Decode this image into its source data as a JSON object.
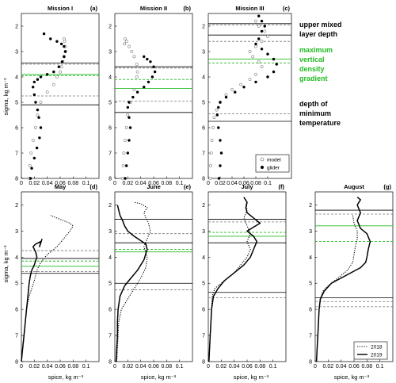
{
  "figure": {
    "ylabel": "sigma, kg m⁻³",
    "xlabel": "spice, kg m⁻³"
  },
  "annotations": {
    "upper_line1": "upper mixed",
    "upper_line2": "layer depth",
    "green_line1": "maximum",
    "green_line2": "vertical",
    "green_line3": "density",
    "green_line4": "gradient",
    "green_color": "#22bb22",
    "min_line1": "depth of",
    "min_line2": "minimum",
    "min_line3": "temperature"
  },
  "legend_top": {
    "model": "model",
    "glider": "glider"
  },
  "legend_bottom": {
    "y2018": "2018",
    "y2019": "2019"
  },
  "chart_data": [
    {
      "id": "a",
      "type": "scatter",
      "title": "Mission I",
      "panel_label": "(a)",
      "xlim": [
        0,
        0.12
      ],
      "ylim": [
        8,
        1.5
      ],
      "xticks": [
        0,
        0.02,
        0.04,
        0.06,
        0.08,
        0.1
      ],
      "yticks": [
        2,
        3,
        4,
        5,
        6,
        7,
        8
      ],
      "series": [
        {
          "marker": "open",
          "x": [
            0.012,
            0.013,
            0.015,
            0.018,
            0.022,
            0.025,
            0.03,
            0.04,
            0.05,
            0.055,
            0.06,
            0.062,
            0.064,
            0.066,
            0.068,
            0.068,
            0.067,
            0.066
          ],
          "y": [
            8.0,
            7.5,
            7.0,
            6.5,
            6.0,
            5.5,
            5.0,
            4.6,
            4.3,
            4.0,
            3.8,
            3.6,
            3.4,
            3.2,
            3.0,
            2.8,
            2.6,
            2.5
          ]
        },
        {
          "marker": "filled",
          "x": [
            0.014,
            0.016,
            0.02,
            0.024,
            0.028,
            0.03,
            0.027,
            0.025,
            0.022,
            0.02,
            0.018,
            0.02,
            0.025,
            0.03,
            0.04,
            0.05,
            0.058,
            0.063,
            0.066,
            0.068,
            0.066,
            0.062,
            0.055,
            0.045,
            0.035
          ],
          "y": [
            8.0,
            7.6,
            7.2,
            6.8,
            6.4,
            6.0,
            5.6,
            5.3,
            5.0,
            4.7,
            4.4,
            4.2,
            4.1,
            4.0,
            3.9,
            3.8,
            3.6,
            3.4,
            3.2,
            3.0,
            2.8,
            2.7,
            2.6,
            2.5,
            2.3
          ]
        }
      ],
      "hlines": [
        {
          "y": 3.45,
          "style": "solid"
        },
        {
          "y": 3.5,
          "style": "dashed"
        },
        {
          "y": 3.9,
          "style": "green-solid"
        },
        {
          "y": 3.95,
          "style": "green-dashed"
        },
        {
          "y": 4.75,
          "style": "dashed"
        },
        {
          "y": 5.1,
          "style": "solid"
        }
      ]
    },
    {
      "id": "b",
      "type": "scatter",
      "title": "Mission II",
      "panel_label": "(b)",
      "xlim": [
        0,
        0.12
      ],
      "ylim": [
        8,
        1.5
      ],
      "xticks": [
        0,
        0.02,
        0.04,
        0.06,
        0.08,
        0.1
      ],
      "yticks": [
        2,
        3,
        4,
        5,
        6,
        7,
        8
      ],
      "series": [
        {
          "marker": "open",
          "x": [
            0.012,
            0.013,
            0.014,
            0.016,
            0.018,
            0.02,
            0.024,
            0.03,
            0.034,
            0.035,
            0.034,
            0.03,
            0.026,
            0.022,
            0.018,
            0.016,
            0.015
          ],
          "y": [
            8.0,
            7.5,
            7.0,
            6.5,
            6.0,
            5.5,
            5.0,
            4.5,
            4.0,
            3.8,
            3.5,
            3.2,
            3.0,
            2.8,
            2.6,
            2.5,
            2.7
          ]
        },
        {
          "marker": "filled",
          "x": [
            0.016,
            0.018,
            0.02,
            0.022,
            0.024,
            0.022,
            0.02,
            0.022,
            0.028,
            0.035,
            0.045,
            0.052,
            0.058,
            0.062,
            0.06,
            0.055,
            0.05,
            0.045
          ],
          "y": [
            8.0,
            7.5,
            7.0,
            6.5,
            6.0,
            5.6,
            5.2,
            5.0,
            4.8,
            4.6,
            4.4,
            4.2,
            4.0,
            3.8,
            3.6,
            3.4,
            3.3,
            3.2
          ]
        }
      ],
      "hlines": [
        {
          "y": 3.6,
          "style": "solid"
        },
        {
          "y": 3.65,
          "style": "dashed"
        },
        {
          "y": 4.1,
          "style": "green-dashed"
        },
        {
          "y": 4.45,
          "style": "green-solid"
        },
        {
          "y": 4.95,
          "style": "dashed"
        },
        {
          "y": 5.4,
          "style": "solid"
        }
      ]
    },
    {
      "id": "c",
      "type": "scatter",
      "title": "Mission III",
      "panel_label": "(c)",
      "xlim": [
        0,
        0.14
      ],
      "ylim": [
        8,
        1.5
      ],
      "xticks": [
        0,
        0.02,
        0.04,
        0.06,
        0.08,
        0.1
      ],
      "yticks": [
        2,
        3,
        4,
        5,
        6,
        7,
        8
      ],
      "series": [
        {
          "marker": "open",
          "x": [
            0.003,
            0.004,
            0.005,
            0.006,
            0.008,
            0.01,
            0.014,
            0.02,
            0.03,
            0.04,
            0.055,
            0.07,
            0.08,
            0.09,
            0.085,
            0.075,
            0.07,
            0.08,
            0.09,
            0.1,
            0.095,
            0.085,
            0.08
          ],
          "y": [
            8.0,
            7.5,
            7.0,
            6.5,
            6.0,
            5.6,
            5.3,
            5.0,
            4.7,
            4.5,
            4.3,
            4.1,
            3.9,
            3.6,
            3.4,
            3.2,
            3.0,
            2.8,
            2.6,
            2.4,
            2.2,
            2.0,
            1.8
          ]
        },
        {
          "marker": "filled",
          "x": [
            0.018,
            0.02,
            0.022,
            0.02,
            0.017,
            0.015,
            0.017,
            0.02,
            0.03,
            0.045,
            0.06,
            0.08,
            0.1,
            0.11,
            0.115,
            0.11,
            0.1,
            0.09,
            0.08,
            0.085,
            0.09,
            0.095,
            0.09,
            0.085
          ],
          "y": [
            8.0,
            7.5,
            7.0,
            6.5,
            6.0,
            5.5,
            5.2,
            5.0,
            4.8,
            4.6,
            4.4,
            4.2,
            4.0,
            3.8,
            3.5,
            3.3,
            3.1,
            2.9,
            2.7,
            2.5,
            2.2,
            2.0,
            1.8,
            1.6
          ]
        }
      ],
      "hlines": [
        {
          "y": 1.9,
          "style": "solid"
        },
        {
          "y": 1.95,
          "style": "dashed"
        },
        {
          "y": 2.35,
          "style": "solid"
        },
        {
          "y": 2.6,
          "style": "dashed"
        },
        {
          "y": 3.3,
          "style": "green-solid"
        },
        {
          "y": 3.45,
          "style": "green-dashed"
        },
        {
          "y": 5.45,
          "style": "dashed"
        },
        {
          "y": 5.75,
          "style": "solid"
        }
      ]
    },
    {
      "id": "d",
      "type": "line",
      "title": "May",
      "panel_label": "(d)",
      "xlim": [
        0,
        0.12
      ],
      "ylim": [
        8,
        1.5
      ],
      "xticks": [
        0,
        0.02,
        0.04,
        0.06,
        0.08,
        0.1
      ],
      "yticks": [
        2,
        3,
        4,
        5,
        6,
        7,
        8
      ],
      "series": [
        {
          "style": "dotted",
          "x": [
            0.0,
            0.002,
            0.004,
            0.006,
            0.008,
            0.012,
            0.016,
            0.02,
            0.024,
            0.03,
            0.04,
            0.055,
            0.065,
            0.075,
            0.08,
            0.075,
            0.065,
            0.055,
            0.045
          ],
          "y": [
            8.0,
            7.5,
            7.0,
            6.5,
            6.0,
            5.5,
            5.2,
            4.9,
            4.5,
            4.2,
            3.9,
            3.6,
            3.3,
            3.0,
            2.8,
            2.7,
            2.6,
            2.5,
            2.4
          ]
        },
        {
          "style": "solid",
          "x": [
            0.0,
            0.002,
            0.004,
            0.006,
            0.008,
            0.01,
            0.012,
            0.014,
            0.016,
            0.02,
            0.024,
            0.022,
            0.018,
            0.022,
            0.03,
            0.028,
            0.032
          ],
          "y": [
            8.0,
            7.5,
            7.0,
            6.5,
            6.0,
            5.5,
            5.0,
            4.7,
            4.5,
            4.3,
            4.0,
            3.8,
            3.6,
            3.5,
            3.4,
            3.6,
            3.3
          ]
        }
      ],
      "hlines": [
        {
          "y": 3.75,
          "style": "dashed"
        },
        {
          "y": 4.05,
          "style": "solid"
        },
        {
          "y": 4.15,
          "style": "green-dashed"
        },
        {
          "y": 4.35,
          "style": "green-solid"
        },
        {
          "y": 4.55,
          "style": "dashed"
        },
        {
          "y": 4.62,
          "style": "solid"
        }
      ]
    },
    {
      "id": "e",
      "type": "line",
      "title": "June",
      "panel_label": "(e)",
      "xlim": [
        0,
        0.12
      ],
      "ylim": [
        8,
        1.5
      ],
      "xticks": [
        0,
        0.02,
        0.04,
        0.06,
        0.08,
        0.1
      ],
      "yticks": [
        2,
        3,
        4,
        5,
        6,
        7,
        8
      ],
      "series": [
        {
          "style": "dotted",
          "x": [
            0.003,
            0.004,
            0.005,
            0.006,
            0.01,
            0.02,
            0.03,
            0.04,
            0.048,
            0.05,
            0.045,
            0.05,
            0.055,
            0.052,
            0.048,
            0.045,
            0.05,
            0.04,
            0.03
          ],
          "y": [
            8.0,
            7.5,
            7.0,
            6.5,
            6.0,
            5.6,
            5.2,
            4.8,
            4.4,
            4.0,
            3.6,
            3.3,
            3.0,
            2.7,
            2.5,
            2.3,
            2.1,
            1.95,
            1.9
          ]
        },
        {
          "style": "solid",
          "x": [
            0.002,
            0.003,
            0.004,
            0.004,
            0.005,
            0.008,
            0.015,
            0.025,
            0.035,
            0.045,
            0.05,
            0.048,
            0.03,
            0.02,
            0.015,
            0.012,
            0.008,
            0.006,
            0.004
          ],
          "y": [
            8.0,
            7.5,
            7.0,
            6.5,
            6.0,
            5.5,
            5.1,
            4.8,
            4.5,
            4.1,
            3.7,
            3.5,
            3.2,
            3.0,
            2.8,
            2.6,
            2.4,
            2.2,
            2.0
          ]
        }
      ],
      "hlines": [
        {
          "y": 2.55,
          "style": "solid"
        },
        {
          "y": 3.1,
          "style": "dashed"
        },
        {
          "y": 3.45,
          "style": "solid"
        },
        {
          "y": 3.7,
          "style": "green-dashed"
        },
        {
          "y": 3.8,
          "style": "green-solid"
        },
        {
          "y": 5.0,
          "style": "solid"
        },
        {
          "y": 5.25,
          "style": "dashed"
        }
      ]
    },
    {
      "id": "f",
      "type": "line",
      "title": "July",
      "panel_label": "(f)",
      "xlim": [
        0,
        0.12
      ],
      "ylim": [
        8,
        1.5
      ],
      "xticks": [
        0,
        0.02,
        0.04,
        0.06,
        0.08,
        0.1
      ],
      "yticks": [
        2,
        3,
        4,
        5,
        6,
        7,
        8
      ],
      "series": [
        {
          "style": "dotted",
          "x": [
            0.001,
            0.002,
            0.003,
            0.004,
            0.005,
            0.006,
            0.01,
            0.02,
            0.03,
            0.04,
            0.05,
            0.06,
            0.065,
            0.06,
            0.065,
            0.06,
            0.055,
            0.06,
            0.058
          ],
          "y": [
            8.0,
            7.5,
            7.0,
            6.5,
            6.0,
            5.5,
            5.2,
            5.0,
            4.8,
            4.6,
            4.3,
            4.0,
            3.7,
            3.4,
            3.1,
            2.8,
            2.5,
            2.2,
            1.9
          ]
        },
        {
          "style": "solid",
          "x": [
            0.001,
            0.002,
            0.003,
            0.004,
            0.005,
            0.008,
            0.015,
            0.025,
            0.04,
            0.055,
            0.065,
            0.07,
            0.075,
            0.07,
            0.06,
            0.08,
            0.07,
            0.06,
            0.058,
            0.06,
            0.055
          ],
          "y": [
            8.0,
            7.5,
            7.0,
            6.5,
            6.0,
            5.5,
            5.2,
            4.9,
            4.6,
            4.3,
            4.0,
            3.7,
            3.4,
            3.2,
            3.0,
            2.7,
            2.5,
            2.3,
            2.1,
            1.9,
            1.7
          ]
        }
      ],
      "hlines": [
        {
          "y": 2.55,
          "style": "solid"
        },
        {
          "y": 2.65,
          "style": "dashed"
        },
        {
          "y": 3.05,
          "style": "green-dashed"
        },
        {
          "y": 3.2,
          "style": "green-solid"
        },
        {
          "y": 3.45,
          "style": "solid"
        },
        {
          "y": 5.35,
          "style": "solid"
        },
        {
          "y": 5.55,
          "style": "dashed"
        }
      ]
    },
    {
      "id": "g",
      "type": "line",
      "title": "August",
      "panel_label": "(g)",
      "xlim": [
        0,
        0.12
      ],
      "ylim": [
        8,
        1.5
      ],
      "xticks": [
        0,
        0.02,
        0.04,
        0.06,
        0.08,
        0.1
      ],
      "yticks": [
        2,
        3,
        4,
        5,
        6,
        7,
        8
      ],
      "series": [
        {
          "style": "dotted",
          "x": [
            0.002,
            0.003,
            0.004,
            0.005,
            0.006,
            0.008,
            0.012,
            0.02,
            0.03,
            0.04,
            0.05,
            0.058,
            0.06,
            0.062,
            0.065,
            0.065,
            0.06,
            0.058
          ],
          "y": [
            8.0,
            7.5,
            7.0,
            6.5,
            6.0,
            5.6,
            5.3,
            5.1,
            4.9,
            4.7,
            4.5,
            4.2,
            3.9,
            3.6,
            3.3,
            3.0,
            2.7,
            2.4
          ]
        },
        {
          "style": "solid",
          "x": [
            0.002,
            0.003,
            0.004,
            0.005,
            0.006,
            0.008,
            0.014,
            0.025,
            0.04,
            0.055,
            0.07,
            0.078,
            0.08,
            0.082,
            0.085,
            0.08,
            0.07,
            0.065,
            0.07,
            0.065,
            0.07,
            0.065
          ],
          "y": [
            8.0,
            7.5,
            7.0,
            6.5,
            6.0,
            5.6,
            5.3,
            5.0,
            4.8,
            4.6,
            4.4,
            4.2,
            4.0,
            3.7,
            3.4,
            3.1,
            2.9,
            2.6,
            2.3,
            2.0,
            1.8,
            1.7
          ]
        }
      ],
      "hlines": [
        {
          "y": 2.2,
          "style": "solid"
        },
        {
          "y": 2.35,
          "style": "dashed"
        },
        {
          "y": 2.8,
          "style": "green-solid"
        },
        {
          "y": 3.4,
          "style": "green-dashed"
        },
        {
          "y": 5.55,
          "style": "solid"
        },
        {
          "y": 5.7,
          "style": "dashed"
        },
        {
          "y": 5.9,
          "style": "dashed"
        }
      ]
    }
  ]
}
